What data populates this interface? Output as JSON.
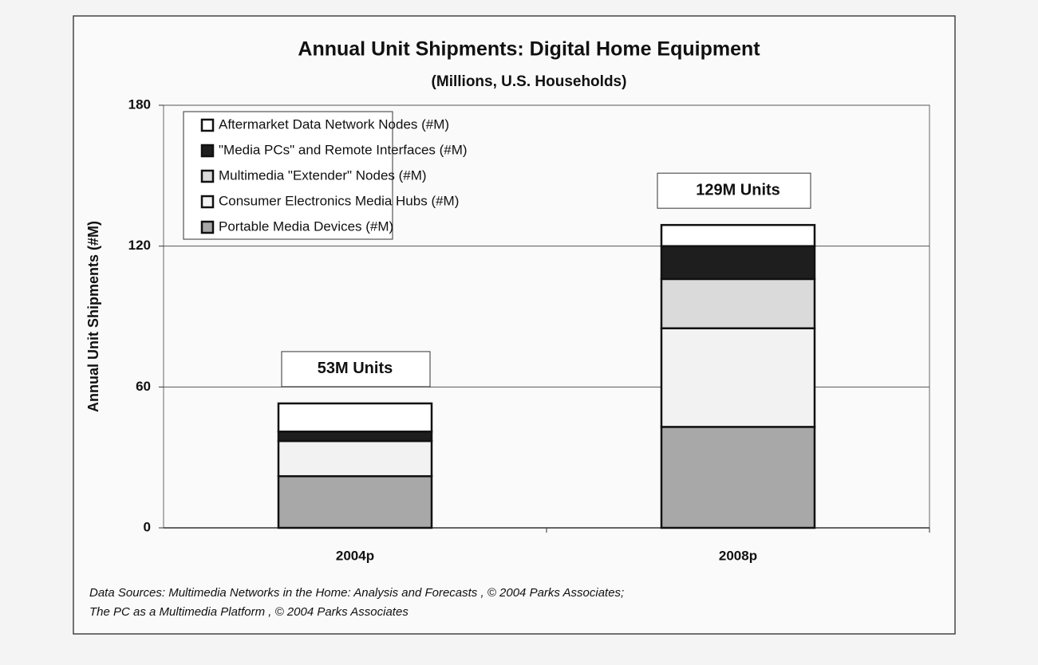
{
  "chart_data": {
    "type": "stacked_bar",
    "title": "Annual Unit Shipments:  Digital Home Equipment",
    "subtitle": "(Millions, U.S. Households)",
    "y_label": "Annual Unit Shipments (#M)",
    "categories": [
      "2004p",
      "2008p"
    ],
    "series": [
      {
        "name": "Portable Media Devices (#M)",
        "color": "#a8a8a8",
        "values": [
          22,
          43
        ]
      },
      {
        "name": "Consumer Electronics Media Hubs (#M)",
        "color": "#f2f2f2",
        "values": [
          15,
          42
        ]
      },
      {
        "name": "Multimedia \"Extender\" Nodes (#M)",
        "color": "#dadada",
        "values": [
          0,
          21
        ]
      },
      {
        "name": "\"Media PCs\" and Remote Interfaces (#M)",
        "color": "#1e1e1e",
        "values": [
          4,
          14
        ]
      },
      {
        "name": "Aftermarket Data Network Nodes (#M)",
        "color": "#ffffff",
        "values": [
          12,
          9
        ]
      }
    ],
    "annotations": [
      "53M Units",
      "129M Units"
    ],
    "ylim": [
      0,
      180
    ],
    "yticks": [
      0,
      60,
      120,
      180
    ],
    "grid": true,
    "sources": [
      "Data Sources:  Multimedia Networks in the Home: Analysis and Forecasts , © 2004 Parks Associates;",
      "The PC as a Multimedia Platform , © 2004 Parks Associates"
    ]
  }
}
